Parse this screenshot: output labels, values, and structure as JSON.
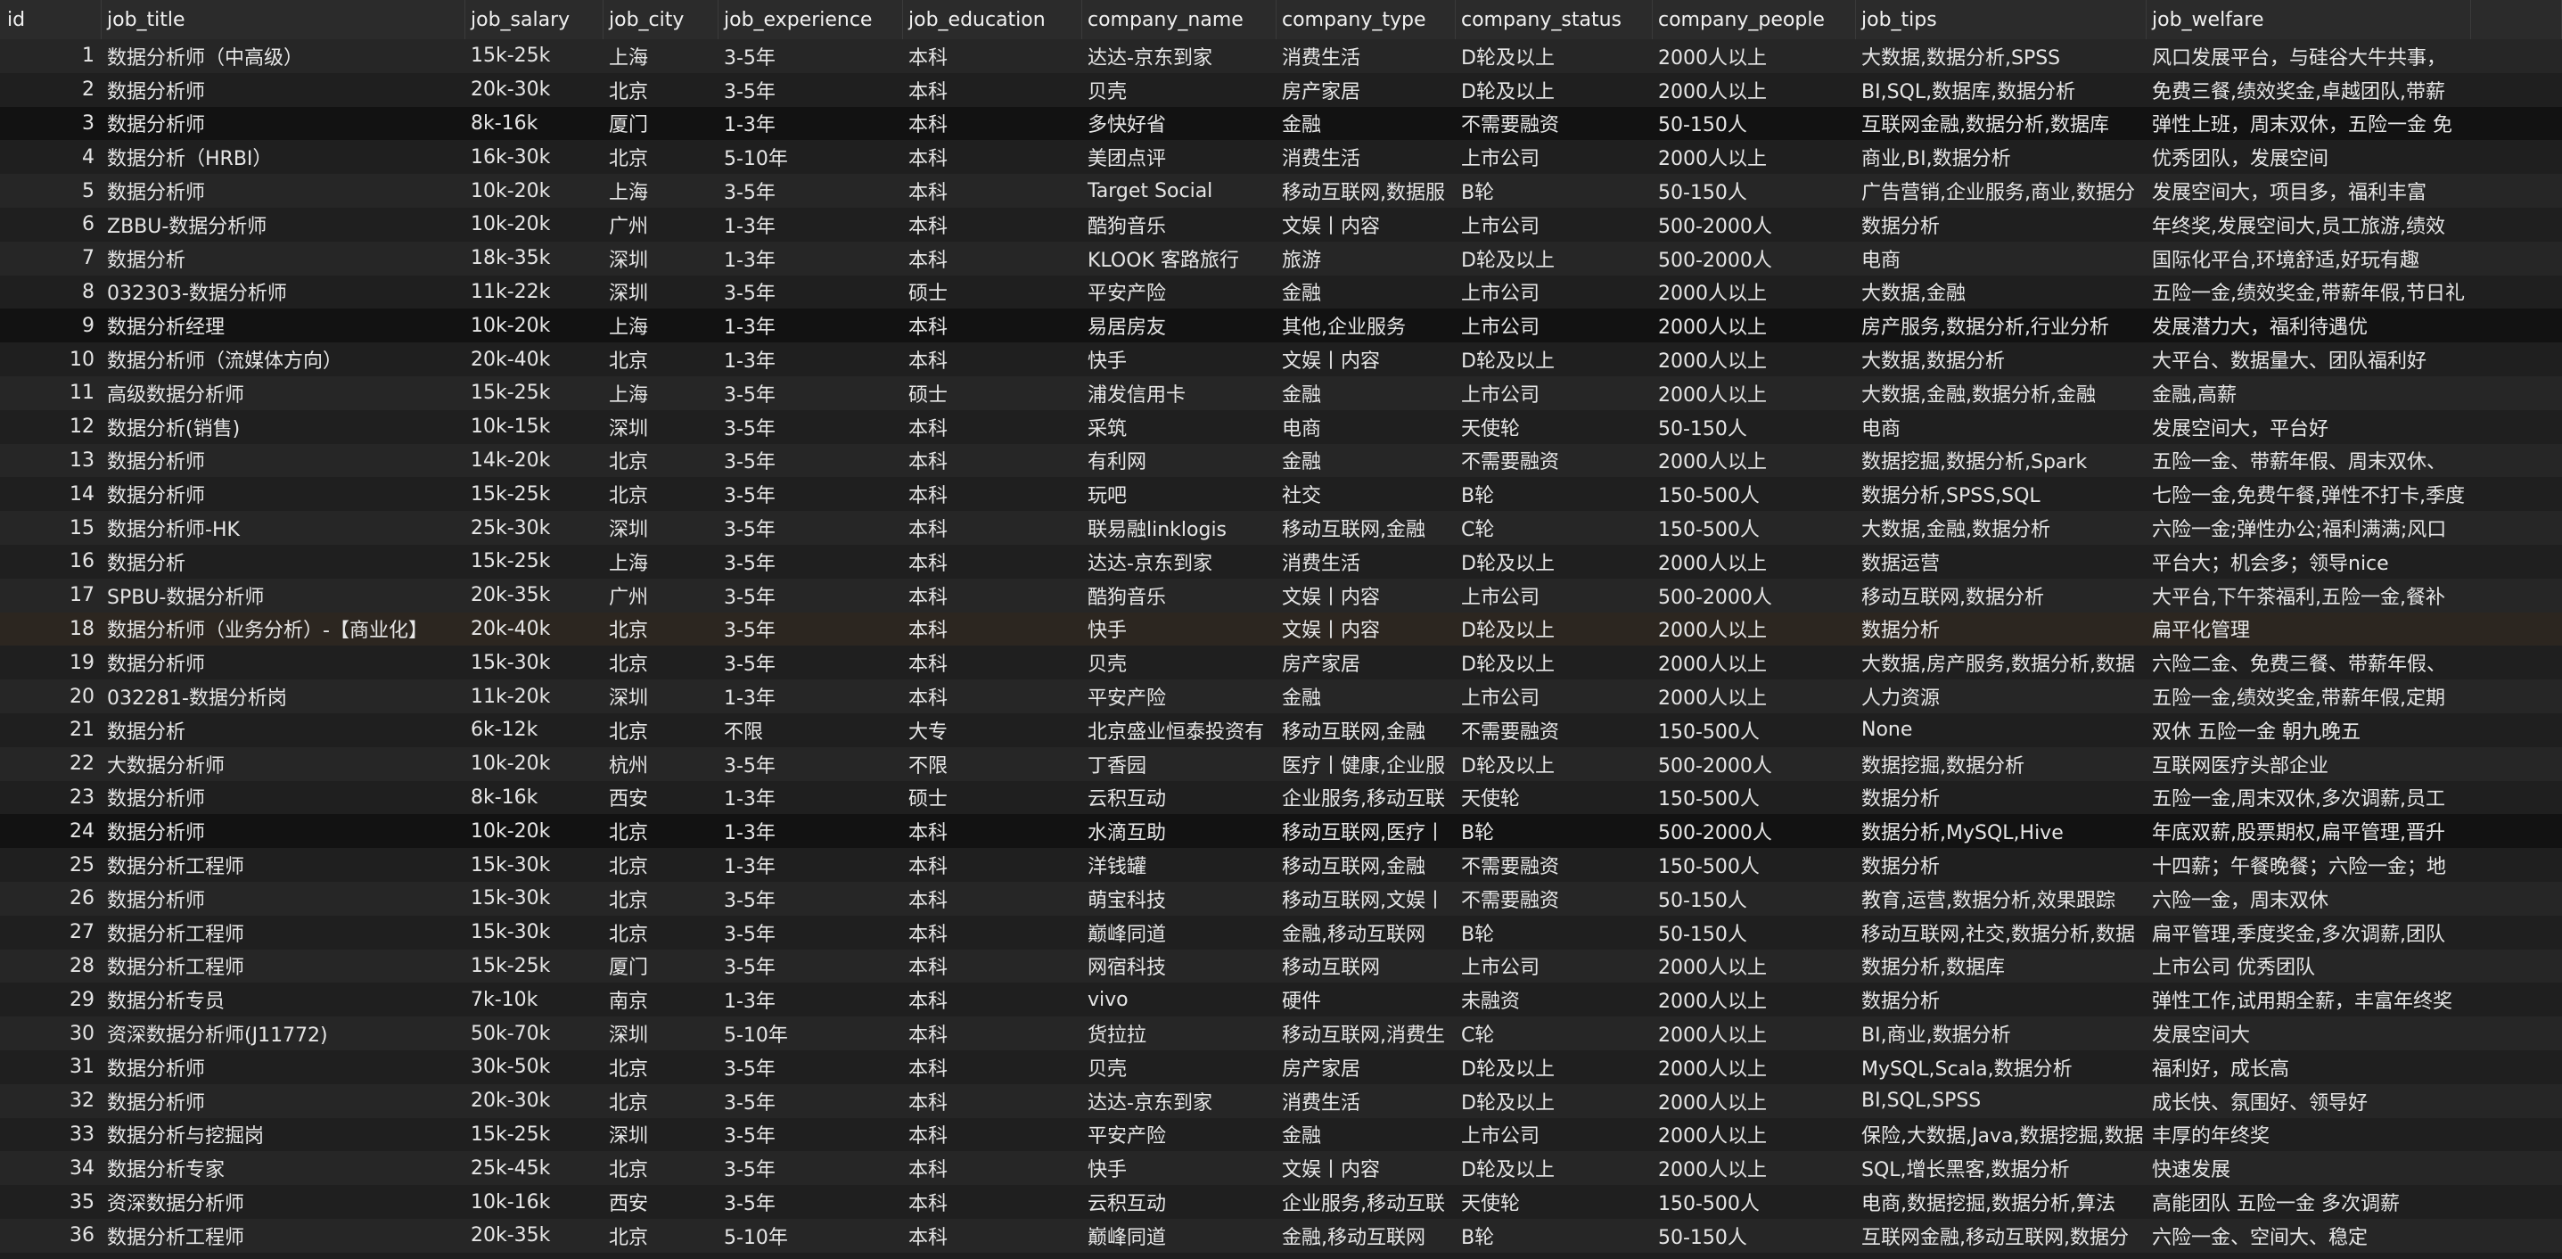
{
  "columns": [
    "id",
    "job_title",
    "job_salary",
    "job_city",
    "job_experience",
    "job_education",
    "company_name",
    "company_type",
    "company_status",
    "company_people",
    "job_tips",
    "job_welfare"
  ],
  "rows": [
    [
      "1",
      "数据分析师（中高级）",
      "15k-25k",
      "上海",
      "3-5年",
      "本科",
      "达达-京东到家",
      "消费生活",
      "D轮及以上",
      "2000人以上",
      "大数据,数据分析,SPSS",
      "风口发展平台，与硅谷大牛共事，"
    ],
    [
      "2",
      "数据分析师",
      "20k-30k",
      "北京",
      "3-5年",
      "本科",
      "贝壳",
      "房产家居",
      "D轮及以上",
      "2000人以上",
      "BI,SQL,数据库,数据分析",
      "免费三餐,绩效奖金,卓越团队,带薪"
    ],
    [
      "3",
      "数据分析师",
      "8k-16k",
      "厦门",
      "1-3年",
      "本科",
      "多快好省",
      "金融",
      "不需要融资",
      "50-150人",
      "互联网金融,数据分析,数据库",
      "弹性上班，周末双休，五险一金 免"
    ],
    [
      "4",
      "数据分析（HRBI）",
      "16k-30k",
      "北京",
      "5-10年",
      "本科",
      "美团点评",
      "消费生活",
      "上市公司",
      "2000人以上",
      "商业,BI,数据分析",
      "优秀团队，发展空间"
    ],
    [
      "5",
      "数据分析师",
      "10k-20k",
      "上海",
      "3-5年",
      "本科",
      "Target Social",
      "移动互联网,数据服",
      "B轮",
      "50-150人",
      "广告营销,企业服务,商业,数据分",
      "发展空间大，项目多，福利丰富"
    ],
    [
      "6",
      "ZBBU-数据分析师",
      "10k-20k",
      "广州",
      "1-3年",
      "本科",
      "酷狗音乐",
      "文娱丨内容",
      "上市公司",
      "500-2000人",
      "数据分析",
      "年终奖,发展空间大,员工旅游,绩效"
    ],
    [
      "7",
      "数据分析",
      "18k-35k",
      "深圳",
      "1-3年",
      "本科",
      "KLOOK 客路旅行",
      "旅游",
      "D轮及以上",
      "500-2000人",
      "电商",
      "国际化平台,环境舒适,好玩有趣"
    ],
    [
      "8",
      "032303-数据分析师",
      "11k-22k",
      "深圳",
      "3-5年",
      "硕士",
      "平安产险",
      "金融",
      "上市公司",
      "2000人以上",
      "大数据,金融",
      "五险一金,绩效奖金,带薪年假,节日礼"
    ],
    [
      "9",
      "数据分析经理",
      "10k-20k",
      "上海",
      "1-3年",
      "本科",
      "易居房友",
      "其他,企业服务",
      "上市公司",
      "2000人以上",
      "房产服务,数据分析,行业分析",
      "发展潜力大，福利待遇优"
    ],
    [
      "10",
      "数据分析师（流媒体方向）",
      "20k-40k",
      "北京",
      "1-3年",
      "本科",
      "快手",
      "文娱丨内容",
      "D轮及以上",
      "2000人以上",
      "大数据,数据分析",
      "大平台、数据量大、团队福利好"
    ],
    [
      "11",
      "高级数据分析师",
      "15k-25k",
      "上海",
      "3-5年",
      "硕士",
      "浦发信用卡",
      "金融",
      "上市公司",
      "2000人以上",
      "大数据,金融,数据分析,金融",
      "金融,高薪"
    ],
    [
      "12",
      "数据分析(销售)",
      "10k-15k",
      "深圳",
      "3-5年",
      "本科",
      "采筑",
      "电商",
      "天使轮",
      "50-150人",
      "电商",
      "发展空间大，平台好"
    ],
    [
      "13",
      "数据分析师",
      "14k-20k",
      "北京",
      "3-5年",
      "本科",
      "有利网",
      "金融",
      "不需要融资",
      "2000人以上",
      "数据挖掘,数据分析,Spark",
      "五险一金、带薪年假、周末双休、"
    ],
    [
      "14",
      "数据分析师",
      "15k-25k",
      "北京",
      "3-5年",
      "本科",
      "玩吧",
      "社交",
      "B轮",
      "150-500人",
      "数据分析,SPSS,SQL",
      "七险一金,免费午餐,弹性不打卡,季度"
    ],
    [
      "15",
      "数据分析师-HK",
      "25k-30k",
      "深圳",
      "3-5年",
      "本科",
      "联易融linklogis",
      "移动互联网,金融",
      "C轮",
      "150-500人",
      "大数据,金融,数据分析",
      "六险一金;弹性办公;福利满满;风口"
    ],
    [
      "16",
      "数据分析",
      "15k-25k",
      "上海",
      "3-5年",
      "本科",
      "达达-京东到家",
      "消费生活",
      "D轮及以上",
      "2000人以上",
      "数据运营",
      "平台大；机会多；领导nice"
    ],
    [
      "17",
      "SPBU-数据分析师",
      "20k-35k",
      "广州",
      "3-5年",
      "本科",
      "酷狗音乐",
      "文娱丨内容",
      "上市公司",
      "500-2000人",
      "移动互联网,数据分析",
      "大平台,下午茶福利,五险一金,餐补"
    ],
    [
      "18",
      "数据分析师（业务分析）-【商业化】",
      "20k-40k",
      "北京",
      "3-5年",
      "本科",
      "快手",
      "文娱丨内容",
      "D轮及以上",
      "2000人以上",
      "数据分析",
      "扁平化管理"
    ],
    [
      "19",
      "数据分析师",
      "15k-30k",
      "北京",
      "3-5年",
      "本科",
      "贝壳",
      "房产家居",
      "D轮及以上",
      "2000人以上",
      "大数据,房产服务,数据分析,数据",
      "六险二金、免费三餐、带薪年假、"
    ],
    [
      "20",
      "032281-数据分析岗",
      "11k-20k",
      "深圳",
      "1-3年",
      "本科",
      "平安产险",
      "金融",
      "上市公司",
      "2000人以上",
      "人力资源",
      "五险一金,绩效奖金,带薪年假,定期"
    ],
    [
      "21",
      "数据分析",
      "6k-12k",
      "北京",
      "不限",
      "大专",
      "北京盛业恒泰投资有",
      "移动互联网,金融",
      "不需要融资",
      "150-500人",
      "None",
      "双休 五险一金 朝九晚五"
    ],
    [
      "22",
      "大数据分析师",
      "10k-20k",
      "杭州",
      "3-5年",
      "不限",
      "丁香园",
      "医疗丨健康,企业服",
      "D轮及以上",
      "500-2000人",
      "数据挖掘,数据分析",
      "互联网医疗头部企业"
    ],
    [
      "23",
      "数据分析师",
      "8k-16k",
      "西安",
      "1-3年",
      "硕士",
      "云积互动",
      "企业服务,移动互联",
      "天使轮",
      "150-500人",
      "数据分析",
      "五险一金,周末双休,多次调薪,员工"
    ],
    [
      "24",
      "数据分析师",
      "10k-20k",
      "北京",
      "1-3年",
      "本科",
      "水滴互助",
      "移动互联网,医疗丨",
      "B轮",
      "500-2000人",
      "数据分析,MySQL,Hive",
      "年底双薪,股票期权,扁平管理,晋升"
    ],
    [
      "25",
      "数据分析工程师",
      "15k-30k",
      "北京",
      "1-3年",
      "本科",
      "洋钱罐",
      "移动互联网,金融",
      "不需要融资",
      "150-500人",
      "数据分析",
      "十四薪；午餐晚餐；六险一金；地"
    ],
    [
      "26",
      "数据分析师",
      "15k-30k",
      "北京",
      "3-5年",
      "本科",
      "萌宝科技",
      "移动互联网,文娱丨",
      "不需要融资",
      "50-150人",
      "教育,运营,数据分析,效果跟踪",
      "六险一金，周末双休"
    ],
    [
      "27",
      "数据分析工程师",
      "15k-30k",
      "北京",
      "3-5年",
      "本科",
      "巅峰同道",
      "金融,移动互联网",
      "B轮",
      "50-150人",
      "移动互联网,社交,数据分析,数据",
      "扁平管理,季度奖金,多次调薪,团队"
    ],
    [
      "28",
      "数据分析工程师",
      "15k-25k",
      "厦门",
      "3-5年",
      "本科",
      "网宿科技",
      "移动互联网",
      "上市公司",
      "2000人以上",
      "数据分析,数据库",
      "上市公司 优秀团队"
    ],
    [
      "29",
      "数据分析专员",
      "7k-10k",
      "南京",
      "1-3年",
      "本科",
      "vivo",
      "硬件",
      "未融资",
      "2000人以上",
      "数据分析",
      "弹性工作,试用期全薪，丰富年终奖"
    ],
    [
      "30",
      "资深数据分析师(J11772)",
      "50k-70k",
      "深圳",
      "5-10年",
      "本科",
      "货拉拉",
      "移动互联网,消费生",
      "C轮",
      "2000人以上",
      "BI,商业,数据分析",
      "发展空间大"
    ],
    [
      "31",
      "数据分析师",
      "30k-50k",
      "北京",
      "3-5年",
      "本科",
      "贝壳",
      "房产家居",
      "D轮及以上",
      "2000人以上",
      "MySQL,Scala,数据分析",
      "福利好，成长高"
    ],
    [
      "32",
      "数据分析师",
      "20k-30k",
      "北京",
      "3-5年",
      "本科",
      "达达-京东到家",
      "消费生活",
      "D轮及以上",
      "2000人以上",
      "BI,SQL,SPSS",
      "成长快、氛围好、领导好"
    ],
    [
      "33",
      "数据分析与挖掘岗",
      "15k-25k",
      "深圳",
      "3-5年",
      "本科",
      "平安产险",
      "金融",
      "上市公司",
      "2000人以上",
      "保险,大数据,Java,数据挖掘,数据",
      "丰厚的年终奖"
    ],
    [
      "34",
      "数据分析专家",
      "25k-45k",
      "北京",
      "3-5年",
      "本科",
      "快手",
      "文娱丨内容",
      "D轮及以上",
      "2000人以上",
      "SQL,增长黑客,数据分析",
      "快速发展"
    ],
    [
      "35",
      "资深数据分析师",
      "10k-16k",
      "西安",
      "3-5年",
      "本科",
      "云积互动",
      "企业服务,移动互联",
      "天使轮",
      "150-500人",
      "电商,数据挖掘,数据分析,算法",
      "高能团队 五险一金 多次调薪"
    ],
    [
      "36",
      "数据分析工程师",
      "20k-35k",
      "北京",
      "5-10年",
      "本科",
      "巅峰同道",
      "金融,移动互联网",
      "B轮",
      "50-150人",
      "互联网金融,移动互联网,数据分",
      "六险一金、空间大、稳定"
    ]
  ],
  "row_styles": [
    "alt",
    "even",
    "black",
    "even",
    "alt",
    "even",
    "alt",
    "even",
    "black",
    "even",
    "alt",
    "even",
    "alt",
    "even",
    "alt",
    "even",
    "alt",
    "brown",
    "even",
    "alt",
    "even",
    "alt",
    "even",
    "black",
    "even",
    "alt",
    "even",
    "alt",
    "even",
    "alt",
    "even",
    "alt",
    "even",
    "alt",
    "even",
    "alt"
  ],
  "colors": {
    "background": "#1e1e1e",
    "header": "#2b2b2b",
    "text": "#e6e6e6"
  }
}
